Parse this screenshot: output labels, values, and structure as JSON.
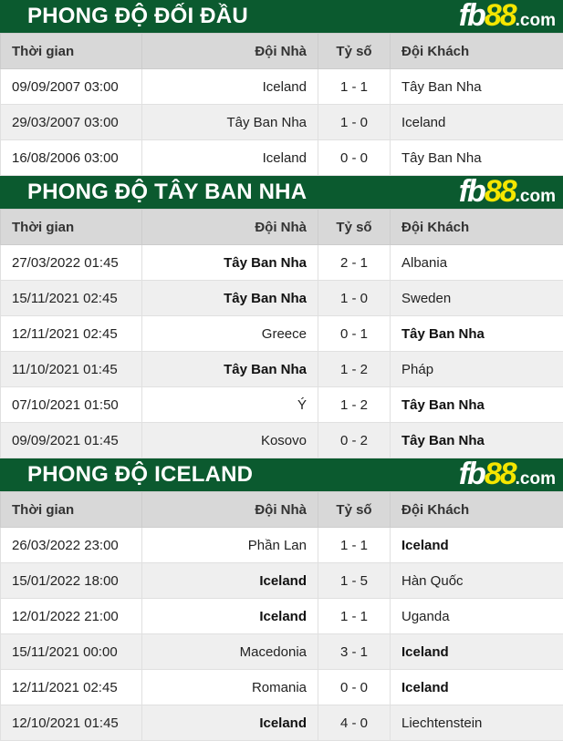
{
  "colors": {
    "header_bg": "#0b5a2f",
    "logo_accent": "#f5e600"
  },
  "logo": {
    "a": "fb",
    "b": "88",
    "c": ".com"
  },
  "columns": [
    "Thời gian",
    "Đội Nhà",
    "Tỷ số",
    "Đội Khách"
  ],
  "sections": [
    {
      "title": "PHONG ĐỘ ĐỐI ĐẦU",
      "rows": [
        {
          "time": "09/09/2007 03:00",
          "home": "Iceland",
          "score": "1 - 1",
          "away": "Tây Ban Nha",
          "bold": ""
        },
        {
          "time": "29/03/2007 03:00",
          "home": "Tây Ban Nha",
          "score": "1 - 0",
          "away": "Iceland",
          "bold": ""
        },
        {
          "time": "16/08/2006 03:00",
          "home": "Iceland",
          "score": "0 - 0",
          "away": "Tây Ban Nha",
          "bold": ""
        }
      ]
    },
    {
      "title": "PHONG ĐỘ TÂY BAN NHA",
      "rows": [
        {
          "time": "27/03/2022 01:45",
          "home": "Tây Ban Nha",
          "score": "2 - 1",
          "away": "Albania",
          "bold": "home"
        },
        {
          "time": "15/11/2021 02:45",
          "home": "Tây Ban Nha",
          "score": "1 - 0",
          "away": "Sweden",
          "bold": "home"
        },
        {
          "time": "12/11/2021 02:45",
          "home": "Greece",
          "score": "0 - 1",
          "away": "Tây Ban Nha",
          "bold": "away"
        },
        {
          "time": "11/10/2021 01:45",
          "home": "Tây Ban Nha",
          "score": "1 - 2",
          "away": "Pháp",
          "bold": "home"
        },
        {
          "time": "07/10/2021 01:50",
          "home": "Ý",
          "score": "1 - 2",
          "away": "Tây Ban Nha",
          "bold": "away"
        },
        {
          "time": "09/09/2021 01:45",
          "home": "Kosovo",
          "score": "0 - 2",
          "away": "Tây Ban Nha",
          "bold": "away"
        }
      ]
    },
    {
      "title": "PHONG ĐỘ ICELAND",
      "rows": [
        {
          "time": "26/03/2022 23:00",
          "home": "Phần Lan",
          "score": "1 - 1",
          "away": "Iceland",
          "bold": "away"
        },
        {
          "time": "15/01/2022 18:00",
          "home": "Iceland",
          "score": "1 - 5",
          "away": "Hàn Quốc",
          "bold": "home"
        },
        {
          "time": "12/01/2022 21:00",
          "home": "Iceland",
          "score": "1 - 1",
          "away": "Uganda",
          "bold": "home"
        },
        {
          "time": "15/11/2021 00:00",
          "home": "Macedonia",
          "score": "3 - 1",
          "away": "Iceland",
          "bold": "away"
        },
        {
          "time": "12/11/2021 02:45",
          "home": "Romania",
          "score": "0 - 0",
          "away": "Iceland",
          "bold": "away"
        },
        {
          "time": "12/10/2021 01:45",
          "home": "Iceland",
          "score": "4 - 0",
          "away": "Liechtenstein",
          "bold": "home"
        }
      ]
    }
  ]
}
